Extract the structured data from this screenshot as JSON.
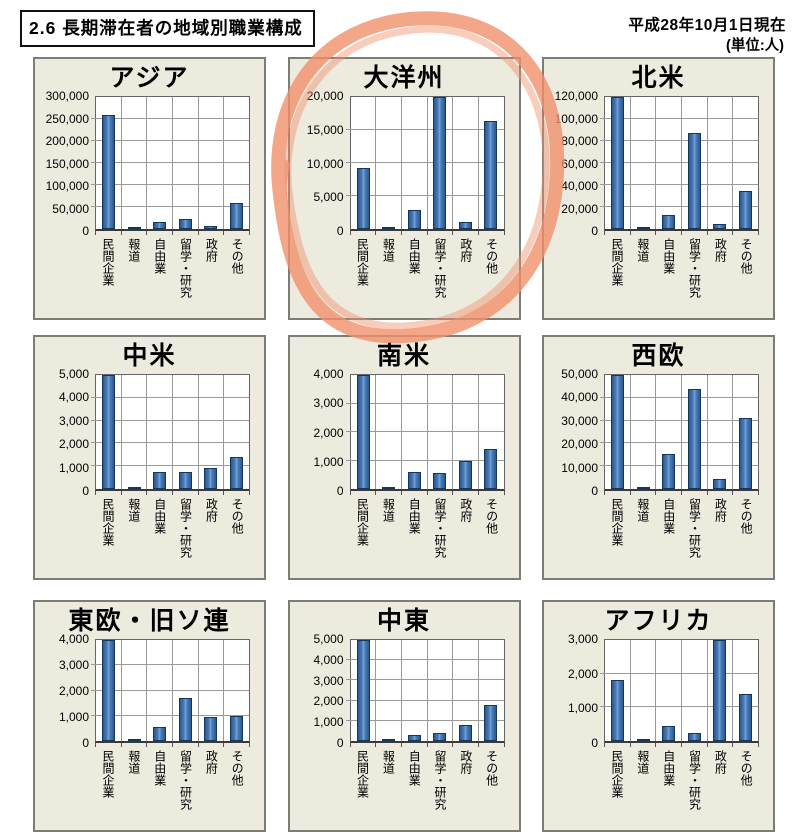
{
  "header": {
    "section_title": "2.6 長期滞在者の地域別職業構成",
    "date_note": "平成28年10月1日現在",
    "unit_note": "(単位:人)"
  },
  "annotation": {
    "shape": "hand-drawn-marker-circle",
    "color": "#f0906a",
    "around_chart": "大洋州"
  },
  "colors": {
    "panel_background": "#edeade",
    "bar_fill": "#4f81bd",
    "bar_border": "#16365c",
    "gridline": "#9a9a98",
    "highlight": "#f0906a"
  },
  "chart_data": [
    {
      "type": "bar",
      "title": "アジア",
      "categories": [
        "民間企業",
        "報道",
        "自由業",
        "留学・研究",
        "政府",
        "その他"
      ],
      "values": [
        258000,
        1500,
        15000,
        22000,
        6000,
        58000
      ],
      "ylim": [
        0,
        300000
      ],
      "ytick_step": 50000,
      "yticks": [
        "0",
        "50,000",
        "100,000",
        "150,000",
        "200,000",
        "250,000",
        "300,000"
      ],
      "grid": "on",
      "legend": "none"
    },
    {
      "type": "bar",
      "title": "大洋州",
      "categories": [
        "民間企業",
        "報道",
        "自由業",
        "留学・研究",
        "政府",
        "その他"
      ],
      "values": [
        9300,
        50,
        2900,
        20000,
        1000,
        16400
      ],
      "ylim": [
        0,
        20000
      ],
      "ytick_step": 5000,
      "yticks": [
        "0",
        "5,000",
        "10,000",
        "15,000",
        "20,000"
      ],
      "grid": "on",
      "legend": "none",
      "highlighted": true
    },
    {
      "type": "bar",
      "title": "北米",
      "categories": [
        "民間企業",
        "報道",
        "自由業",
        "留学・研究",
        "政府",
        "その他"
      ],
      "values": [
        120000,
        2000,
        13000,
        87000,
        4500,
        35000
      ],
      "ylim": [
        0,
        120000
      ],
      "ytick_step": 20000,
      "yticks": [
        "0",
        "20,000",
        "40,000",
        "60,000",
        "80,000",
        "100,000",
        "120,000"
      ],
      "grid": "on",
      "legend": "none"
    },
    {
      "type": "bar",
      "title": "中米",
      "categories": [
        "民間企業",
        "報道",
        "自由業",
        "留学・研究",
        "政府",
        "その他"
      ],
      "values": [
        5000,
        20,
        750,
        750,
        900,
        1400
      ],
      "ylim": [
        0,
        5000
      ],
      "ytick_step": 1000,
      "yticks": [
        "0",
        "1,000",
        "2,000",
        "3,000",
        "4,000",
        "5,000"
      ],
      "grid": "on",
      "legend": "none"
    },
    {
      "type": "bar",
      "title": "南米",
      "categories": [
        "民間企業",
        "報道",
        "自由業",
        "留学・研究",
        "政府",
        "その他"
      ],
      "values": [
        4000,
        50,
        600,
        550,
        1000,
        1400
      ],
      "ylim": [
        0,
        4000
      ],
      "ytick_step": 1000,
      "yticks": [
        "0",
        "1,000",
        "2,000",
        "3,000",
        "4,000"
      ],
      "grid": "on",
      "legend": "none"
    },
    {
      "type": "bar",
      "title": "西欧",
      "categories": [
        "民間企業",
        "報道",
        "自由業",
        "留学・研究",
        "政府",
        "その他"
      ],
      "values": [
        50000,
        800,
        15500,
        44000,
        4500,
        31000
      ],
      "ylim": [
        0,
        50000
      ],
      "ytick_step": 10000,
      "yticks": [
        "0",
        "10,000",
        "20,000",
        "30,000",
        "40,000",
        "50,000"
      ],
      "grid": "on",
      "legend": "none"
    },
    {
      "type": "bar",
      "title": "東欧・旧ソ連",
      "categories": [
        "民間企業",
        "報道",
        "自由業",
        "留学・研究",
        "政府",
        "その他"
      ],
      "values": [
        4000,
        50,
        570,
        1700,
        950,
        1000
      ],
      "ylim": [
        0,
        4000
      ],
      "ytick_step": 1000,
      "yticks": [
        "0",
        "1,000",
        "2,000",
        "3,000",
        "4,000"
      ],
      "grid": "on",
      "legend": "none"
    },
    {
      "type": "bar",
      "title": "中東",
      "categories": [
        "民間企業",
        "報道",
        "自由業",
        "留学・研究",
        "政府",
        "その他"
      ],
      "values": [
        5000,
        80,
        300,
        400,
        800,
        1800
      ],
      "ylim": [
        0,
        5000
      ],
      "ytick_step": 1000,
      "yticks": [
        "0",
        "1,000",
        "2,000",
        "3,000",
        "4,000",
        "5,000"
      ],
      "grid": "on",
      "legend": "none"
    },
    {
      "type": "bar",
      "title": "アフリカ",
      "categories": [
        "民間企業",
        "報道",
        "自由業",
        "留学・研究",
        "政府",
        "その他"
      ],
      "values": [
        1800,
        50,
        450,
        250,
        3000,
        1400
      ],
      "ylim": [
        0,
        3000
      ],
      "ytick_step": 1000,
      "yticks": [
        "0",
        "1,000",
        "2,000",
        "3,000"
      ],
      "grid": "on",
      "legend": "none"
    }
  ]
}
